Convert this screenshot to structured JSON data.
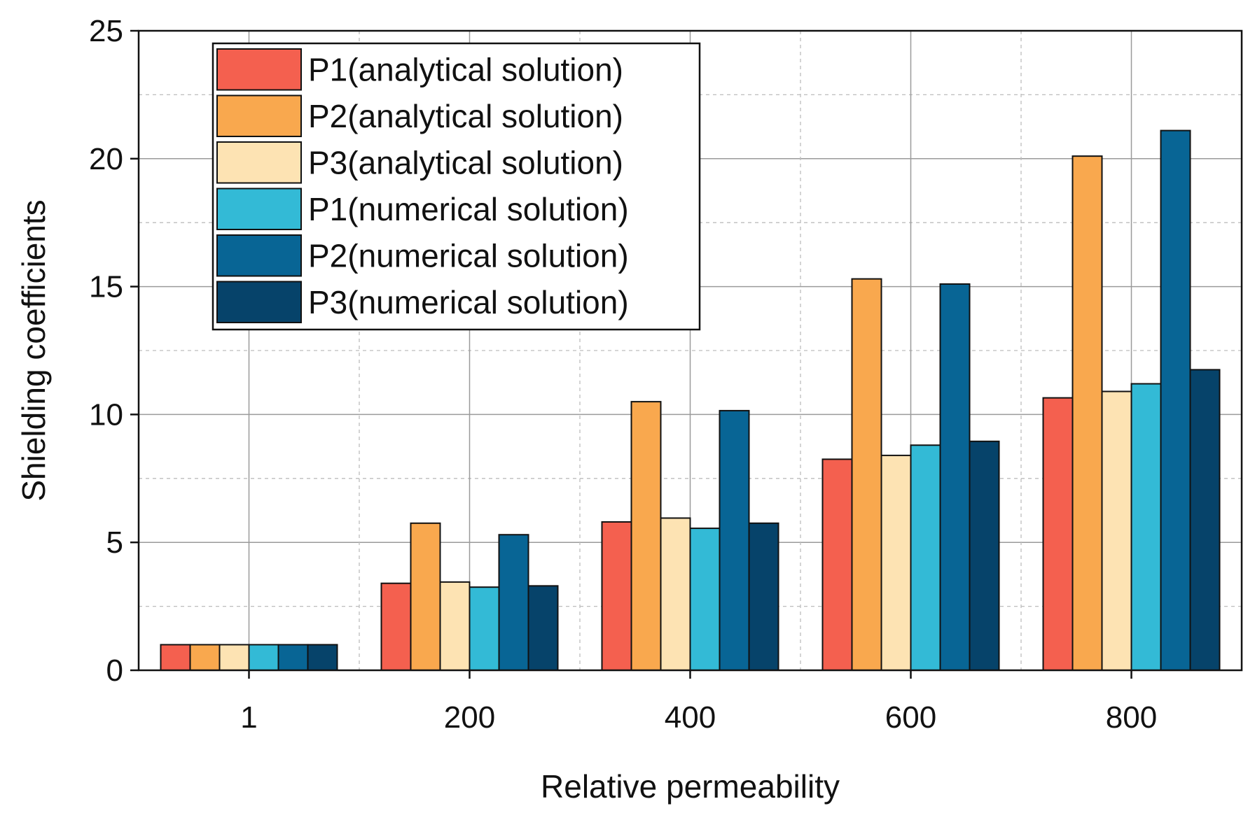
{
  "chart_data": {
    "type": "bar",
    "title": "",
    "xlabel": "Relative permeability",
    "ylabel": "Shielding coefficients",
    "categories": [
      "1",
      "200",
      "400",
      "600",
      "800"
    ],
    "ylim": [
      0,
      25
    ],
    "yticks": [
      0,
      5,
      10,
      15,
      20,
      25
    ],
    "grid": true,
    "legend_position": "top-left",
    "series": [
      {
        "name": "P1(analytical solution)",
        "color": "#f4604f",
        "values": [
          1.0,
          3.4,
          5.8,
          8.25,
          10.65
        ]
      },
      {
        "name": "P2(analytical solution)",
        "color": "#f9a84e",
        "values": [
          1.0,
          5.75,
          10.5,
          15.3,
          20.1
        ]
      },
      {
        "name": "P3(analytical solution)",
        "color": "#fde3b3",
        "values": [
          1.0,
          3.45,
          5.95,
          8.4,
          10.9
        ]
      },
      {
        "name": "P1(numerical solution)",
        "color": "#33bad6",
        "values": [
          1.0,
          3.25,
          5.55,
          8.8,
          11.2
        ]
      },
      {
        "name": "P2(numerical solution)",
        "color": "#086595",
        "values": [
          1.0,
          5.3,
          10.15,
          15.1,
          21.1
        ]
      },
      {
        "name": "P3(numerical solution)",
        "color": "#06436a",
        "values": [
          1.0,
          3.3,
          5.75,
          8.95,
          11.75
        ]
      }
    ]
  }
}
